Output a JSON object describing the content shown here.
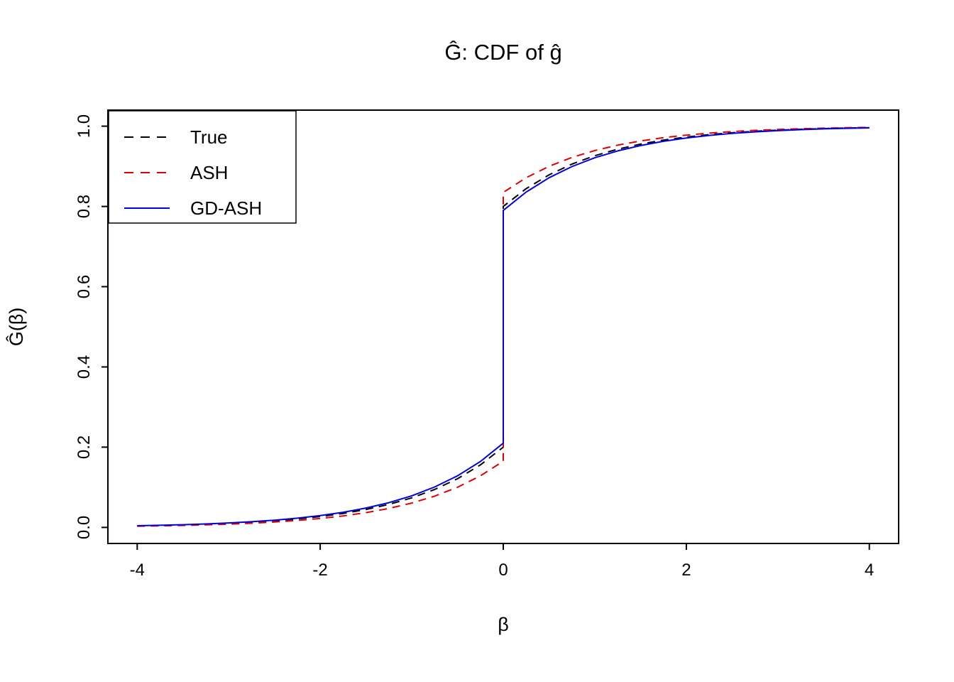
{
  "figure": {
    "background": "#ffffff",
    "axis_color": "#000000"
  },
  "chart_data": {
    "type": "line",
    "title": "Ĝ: CDF of ĝ",
    "xlabel": "β",
    "ylabel": "Ĝ(β)",
    "xlim": [
      -4,
      4
    ],
    "ylim": [
      0,
      1
    ],
    "grid": false,
    "legend_position": "top-left",
    "x_ticks": [
      -4,
      -2,
      0,
      2,
      4
    ],
    "x_tick_labels": [
      "-4",
      "-2",
      "0",
      "2",
      "4"
    ],
    "y_ticks": [
      0,
      0.2,
      0.4,
      0.6,
      0.8,
      1.0
    ],
    "y_tick_labels": [
      "0.0",
      "0.2",
      "0.4",
      "0.6",
      "0.8",
      "1.0"
    ],
    "note": "Mixture CDF with point mass at 0: curves jump vertically at beta = 0",
    "series": [
      {
        "name": "True",
        "color": "#000000",
        "style": "dashed",
        "x": [
          -4,
          -3.75,
          -3.5,
          -3.25,
          -3,
          -2.75,
          -2.5,
          -2.25,
          -2,
          -1.75,
          -1.5,
          -1.25,
          -1,
          -0.75,
          -0.5,
          -0.25,
          0,
          0,
          0.25,
          0.5,
          0.75,
          1,
          1.25,
          1.5,
          1.75,
          2,
          2.25,
          2.5,
          2.75,
          3,
          3.25,
          3.5,
          3.75,
          4
        ],
        "y": [
          0.0037,
          0.0047,
          0.006,
          0.0078,
          0.01,
          0.0128,
          0.0164,
          0.0211,
          0.0271,
          0.0348,
          0.0446,
          0.0573,
          0.0736,
          0.0945,
          0.1213,
          0.1558,
          0.2,
          0.8,
          0.8442,
          0.8787,
          0.9055,
          0.9264,
          0.9427,
          0.9554,
          0.9652,
          0.9729,
          0.9789,
          0.9836,
          0.9872,
          0.99,
          0.9922,
          0.994,
          0.9953,
          0.9963
        ]
      },
      {
        "name": "ASH",
        "color": "#E00000",
        "style": "dashed",
        "x": [
          -4,
          -3.75,
          -3.5,
          -3.25,
          -3,
          -2.75,
          -2.5,
          -2.25,
          -2,
          -1.75,
          -1.5,
          -1.25,
          -1,
          -0.75,
          -0.5,
          -0.25,
          0,
          0,
          0.25,
          0.5,
          0.75,
          1,
          1.25,
          1.5,
          1.75,
          2,
          2.25,
          2.5,
          2.75,
          3,
          3.25,
          3.5,
          3.75,
          4
        ],
        "y": [
          0.003,
          0.0039,
          0.005,
          0.0064,
          0.0082,
          0.0105,
          0.0135,
          0.0174,
          0.0223,
          0.0287,
          0.0368,
          0.0473,
          0.0607,
          0.0779,
          0.1001,
          0.1285,
          0.165,
          0.835,
          0.8715,
          0.8999,
          0.9221,
          0.9393,
          0.9527,
          0.9632,
          0.9713,
          0.9777,
          0.9826,
          0.9865,
          0.9895,
          0.9918,
          0.9936,
          0.995,
          0.9961,
          0.997
        ]
      },
      {
        "name": "GD-ASH",
        "color": "#0000E0",
        "style": "solid",
        "x": [
          -4,
          -3.75,
          -3.5,
          -3.25,
          -3,
          -2.75,
          -2.5,
          -2.25,
          -2,
          -1.75,
          -1.5,
          -1.25,
          -1,
          -0.75,
          -0.5,
          -0.25,
          0,
          0,
          0.25,
          0.5,
          0.75,
          1,
          1.25,
          1.5,
          1.75,
          2,
          2.25,
          2.5,
          2.75,
          3,
          3.25,
          3.5,
          3.75,
          4
        ],
        "y": [
          0.0042,
          0.0053,
          0.0068,
          0.0087,
          0.0111,
          0.0142,
          0.0181,
          0.0231,
          0.0296,
          0.0378,
          0.0483,
          0.0617,
          0.0788,
          0.1007,
          0.1286,
          0.1644,
          0.21,
          0.79,
          0.8356,
          0.8714,
          0.8993,
          0.9212,
          0.9383,
          0.9517,
          0.9622,
          0.9704,
          0.9769,
          0.9819,
          0.9858,
          0.9889,
          0.9913,
          0.9932,
          0.9947,
          0.9958
        ]
      }
    ]
  }
}
